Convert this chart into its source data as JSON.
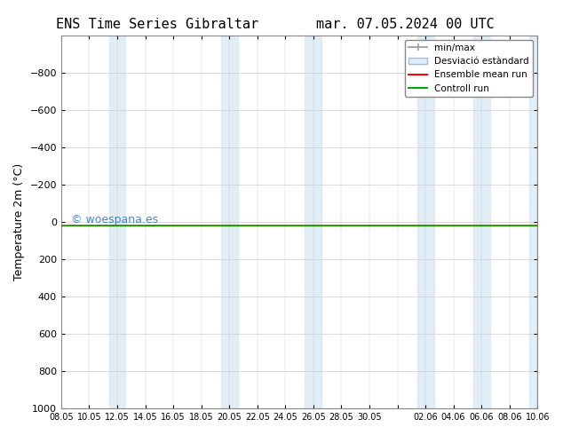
{
  "title_left": "ENS Time Series Gibraltar",
  "title_right": "mar. 07.05.2024 00 UTC",
  "ylabel": "Temperature 2m (°C)",
  "ylim": [
    -1000,
    1000
  ],
  "yticks": [
    -800,
    -600,
    -400,
    -200,
    0,
    200,
    400,
    600,
    800,
    1000
  ],
  "xtick_labels": [
    "08.05",
    "10.05",
    "12.05",
    "14.05",
    "16.05",
    "18.05",
    "20.05",
    "22.05",
    "24.05",
    "26.05",
    "28.05",
    "30.05",
    "",
    "02.06",
    "04.06",
    "06.06",
    "08.06",
    "10.06"
  ],
  "xtick_positions": [
    0,
    2,
    4,
    6,
    8,
    10,
    12,
    14,
    16,
    18,
    20,
    22,
    24,
    26,
    28,
    30,
    32,
    34
  ],
  "blue_band_positions": [
    4,
    12,
    18,
    26,
    30,
    34
  ],
  "control_run_y": 20,
  "ensemble_mean_y": 20,
  "watermark": "© woespana.es",
  "legend_labels": [
    "min/max",
    "Desviació estàndard",
    "Ensemble mean run",
    "Controll run"
  ],
  "background_color": "#ffffff",
  "band_color": "#d0e4f0",
  "band_alpha": 0.6,
  "control_run_color": "#00aa00",
  "ensemble_mean_color": "#ff0000",
  "min_max_color": "#aaaaaa",
  "std_color": "#ccddee"
}
